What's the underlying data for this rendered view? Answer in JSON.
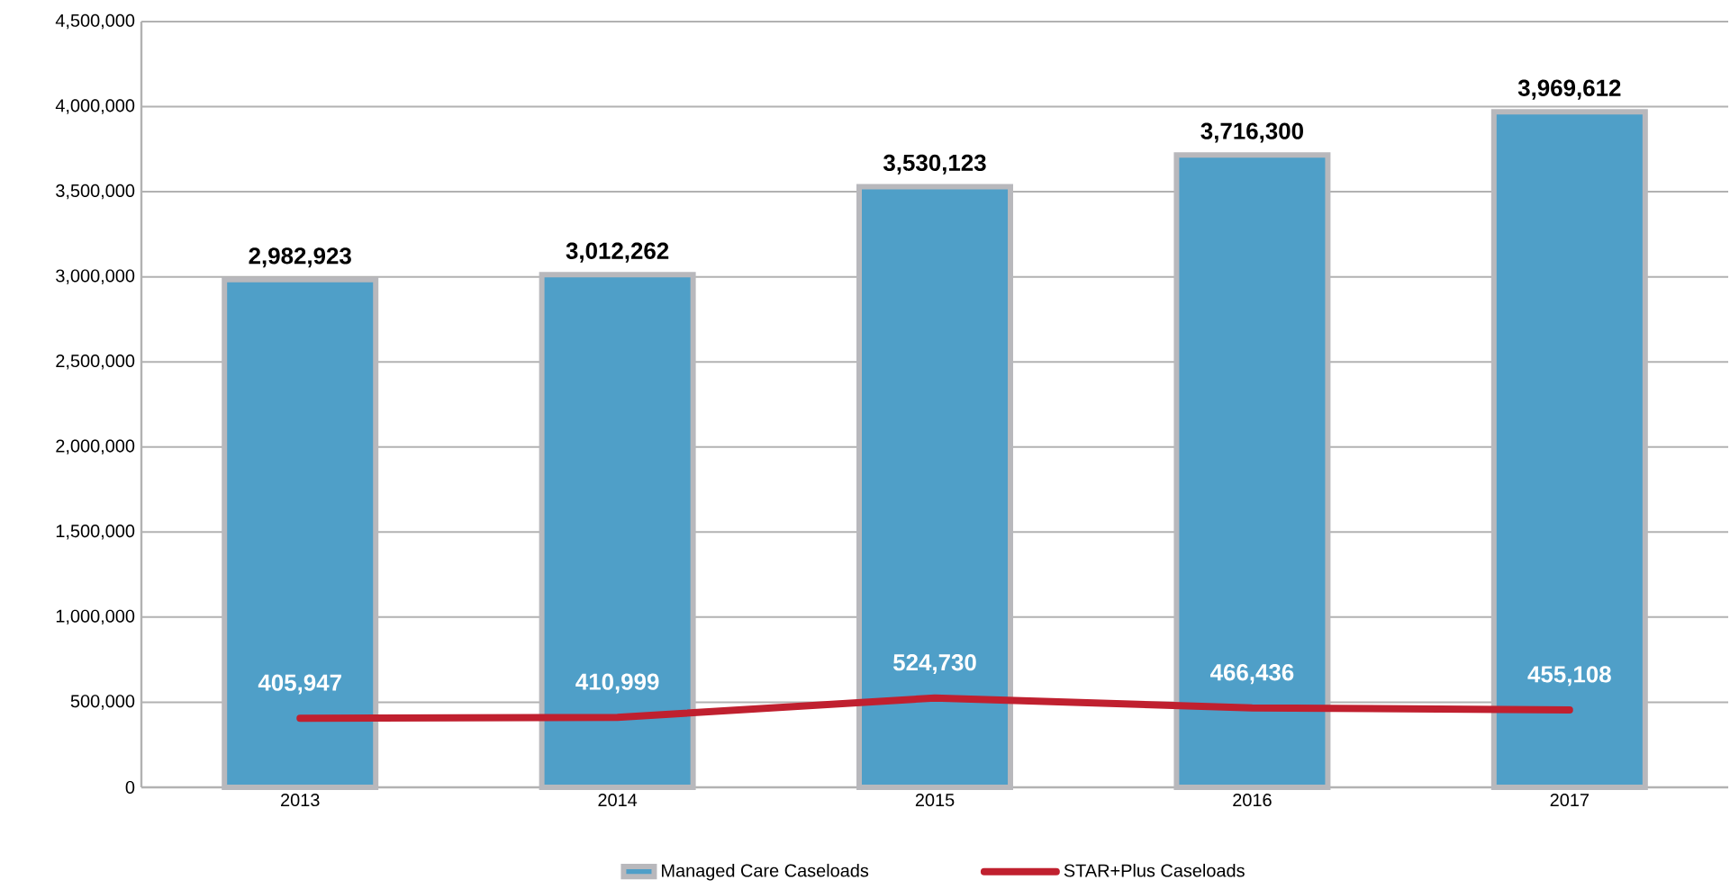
{
  "chart_data": {
    "type": "bar",
    "categories": [
      "2013",
      "2014",
      "2015",
      "2016",
      "2017"
    ],
    "series": [
      {
        "name": "Managed Care Caseloads",
        "color": "#4f9fc8",
        "values": [
          2982923,
          3012262,
          3530123,
          3716300,
          3969612
        ],
        "value_labels": [
          "2,982,923",
          "3,012,262",
          "3,530,123",
          "3,716,300",
          "3,969,612"
        ]
      },
      {
        "name": "STAR+Plus Caseloads",
        "type": "line",
        "color": "#c0202f",
        "values": [
          405947,
          410999,
          524730,
          466436,
          455108
        ],
        "value_labels": [
          "405,947",
          "410,999",
          "524,730",
          "466,436",
          "455,108"
        ]
      }
    ],
    "ylim": [
      0,
      4500000
    ],
    "yticks": [
      0,
      {
        "value": 500000,
        "label": "500,000"
      },
      {
        "value": 1000000,
        "label": "1,000,000"
      },
      {
        "value": 1500000,
        "label": "1,500,000"
      },
      {
        "value": 2000000,
        "label": "2,000,000"
      },
      {
        "value": 2500000,
        "label": "2,500,000"
      },
      {
        "value": 3000000,
        "label": "3,000,000"
      },
      {
        "value": 3500000,
        "label": "3,500,000"
      },
      {
        "value": 4000000,
        "label": "4,000,000"
      },
      {
        "value": 4500000,
        "label": "4,500,000"
      }
    ],
    "grid": "y",
    "legend": "bottom",
    "marker": "none"
  }
}
